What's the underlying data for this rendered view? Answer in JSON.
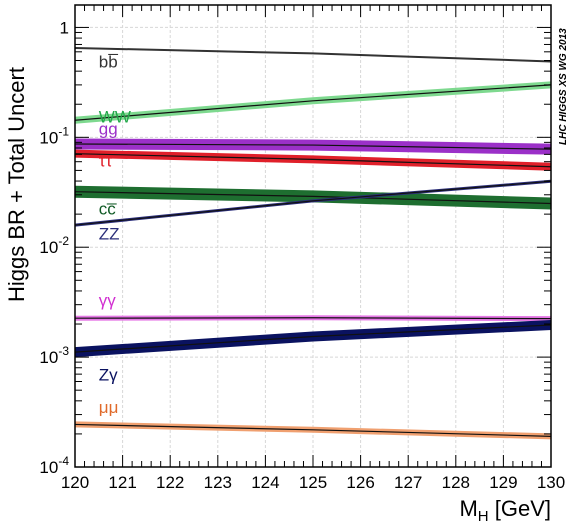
{
  "chart_data": {
    "type": "line",
    "title": "",
    "xlabel_main": "M",
    "xlabel_sub": "H",
    "xlabel_unit": " [GeV]",
    "ylabel": "Higgs BR + Total Uncert",
    "annotation": "LHC HIGGS XS WG 2013",
    "xlim": [
      120,
      130
    ],
    "ylim": [
      0.0001,
      1.6
    ],
    "yscale": "log",
    "grid": true,
    "x_ticks": [
      {
        "value": 120,
        "label": "120"
      },
      {
        "value": 121,
        "label": "121"
      },
      {
        "value": 122,
        "label": "122"
      },
      {
        "value": 123,
        "label": "123"
      },
      {
        "value": 124,
        "label": "124"
      },
      {
        "value": 125,
        "label": "125"
      },
      {
        "value": 126,
        "label": "126"
      },
      {
        "value": 127,
        "label": "127"
      },
      {
        "value": 128,
        "label": "128"
      },
      {
        "value": 129,
        "label": "129"
      },
      {
        "value": 130,
        "label": "130"
      }
    ],
    "y_ticks": [
      {
        "value": 1,
        "base": "1",
        "exp": ""
      },
      {
        "value": 0.1,
        "base": "10",
        "exp": "-1"
      },
      {
        "value": 0.01,
        "base": "10",
        "exp": "-2"
      },
      {
        "value": 0.001,
        "base": "10",
        "exp": "-3"
      },
      {
        "value": 0.0001,
        "base": "10",
        "exp": "-4"
      }
    ],
    "x": [
      120,
      125,
      130
    ],
    "series": [
      {
        "label": "bb̅",
        "color": "#333333",
        "band": "#333333",
        "values": [
          0.65,
          0.58,
          0.49
        ],
        "label_x": 120.5,
        "label_y": 0.43
      },
      {
        "label": "WW",
        "color": "#22a84a",
        "band": "#7ed98f",
        "values": [
          0.143,
          0.215,
          0.3
        ],
        "label_x": 120.5,
        "label_y": 0.137
      },
      {
        "label": "gg",
        "color": "#9b30c8",
        "band": "#9b30c8",
        "values": [
          0.087,
          0.085,
          0.078
        ],
        "label_x": 120.5,
        "label_y": 0.106
      },
      {
        "label": "ττ",
        "color": "#e0202a",
        "band": "#e0202a",
        "values": [
          0.071,
          0.063,
          0.054
        ],
        "label_x": 120.5,
        "label_y": 0.054
      },
      {
        "label": "cc̅",
        "color": "#0f5a24",
        "band": "#1e6e30",
        "values": [
          0.032,
          0.029,
          0.025
        ],
        "label_x": 120.5,
        "label_y": 0.0198
      },
      {
        "label": "ZZ",
        "color": "#2b2e7a",
        "band": "#2b2e7a",
        "values": [
          0.0159,
          0.0264,
          0.0398
        ],
        "label_x": 120.5,
        "label_y": 0.0118
      },
      {
        "label": "γγ",
        "color": "#d12ed1",
        "band": "#e678e6",
        "values": [
          0.00226,
          0.00228,
          0.00224
        ],
        "label_x": 120.5,
        "label_y": 0.00292
      },
      {
        "label": "Zγ",
        "color": "#0a1260",
        "band": "#0a1260",
        "values": [
          0.00111,
          0.00154,
          0.00196
        ],
        "label_x": 120.5,
        "label_y": 0.000615
      },
      {
        "label": "μμ",
        "color": "#e06a2a",
        "band": "#f0a070",
        "values": [
          0.000244,
          0.000218,
          0.00019
        ],
        "label_x": 120.5,
        "label_y": 0.000311
      }
    ]
  }
}
